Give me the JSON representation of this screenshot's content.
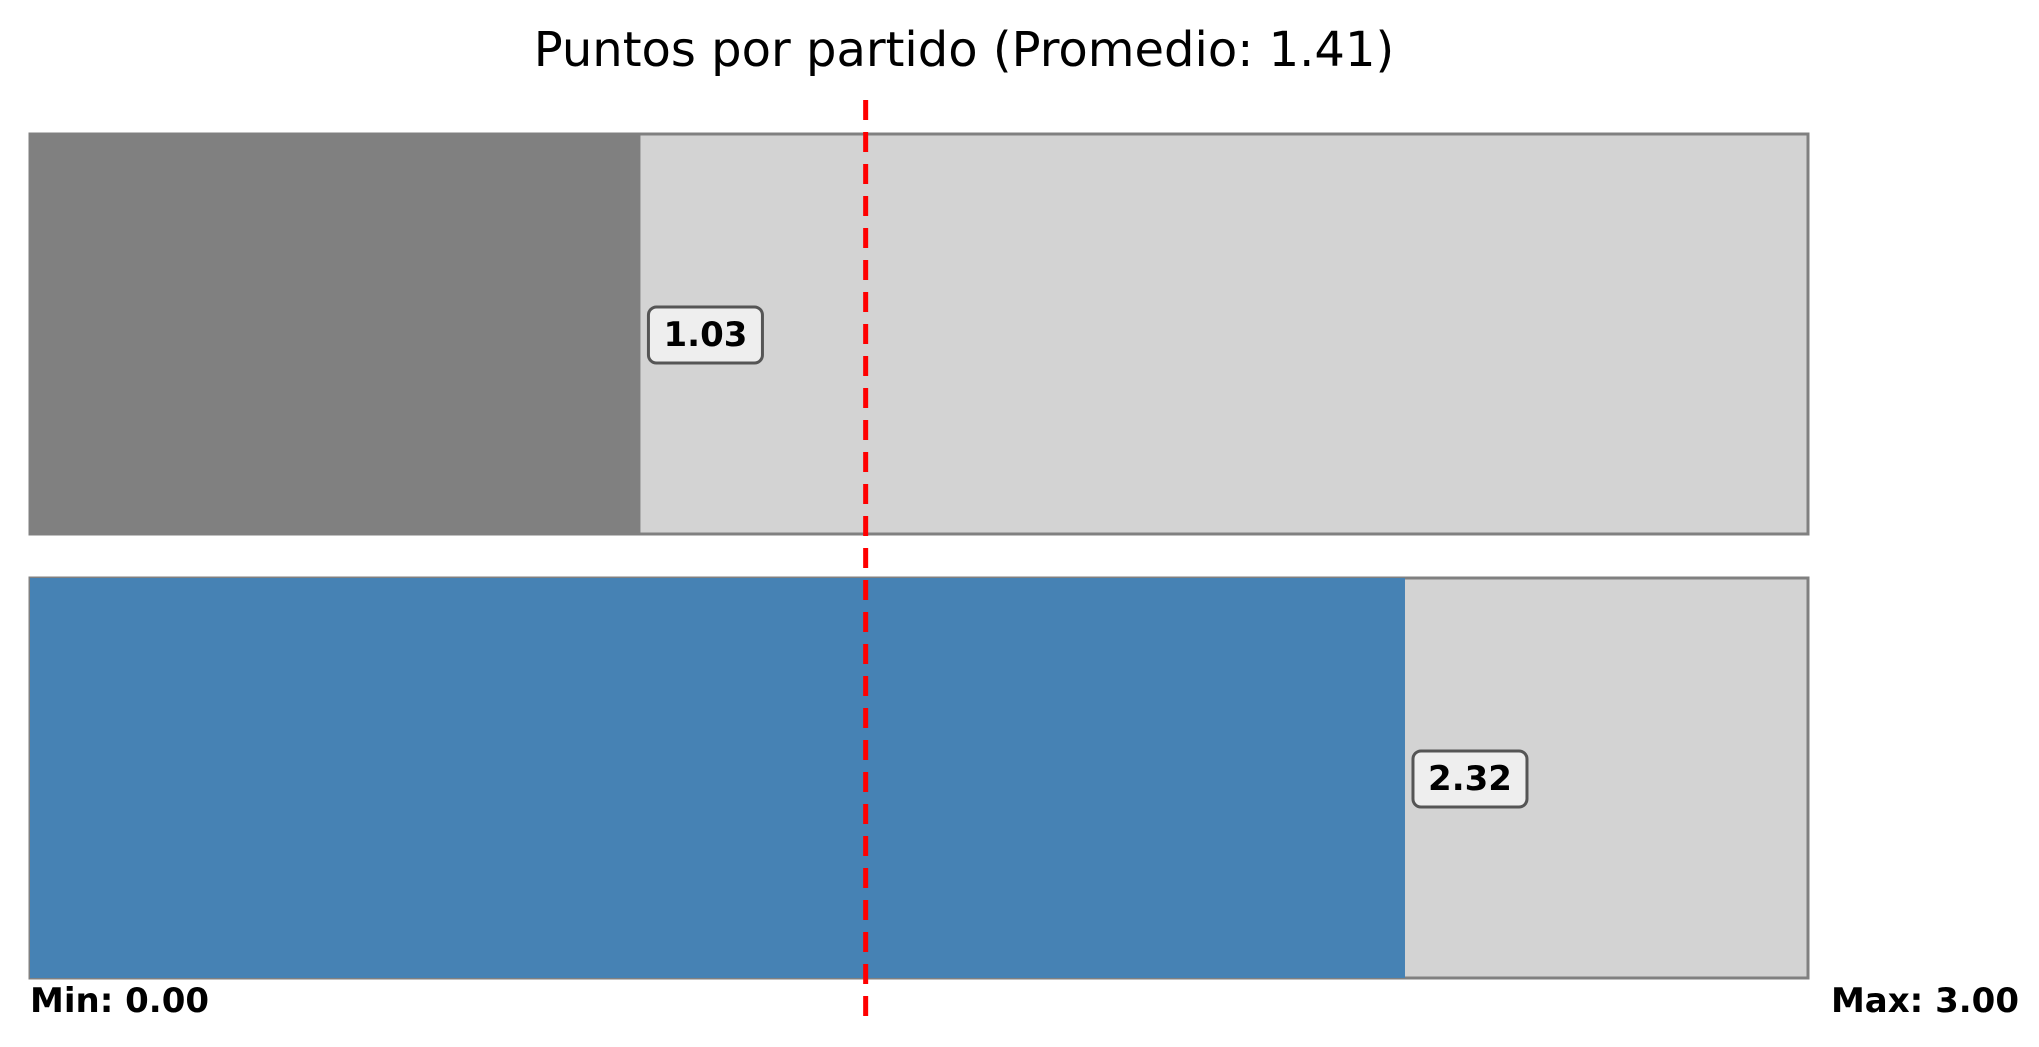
{
  "chart_data": {
    "type": "bar",
    "orientation": "horizontal",
    "title": "Puntos por partido (Promedio: 1.41)",
    "xlim": [
      0,
      3
    ],
    "average": 1.41,
    "min_label": "Min: 0.00",
    "max_label": "Max: 3.00",
    "grid": false,
    "series": [
      {
        "values": [
          1.03,
          2.32
        ]
      }
    ],
    "bars": [
      {
        "value": 1.03,
        "label": "1.03",
        "color": "#808080"
      },
      {
        "value": 2.32,
        "label": "2.32",
        "color": "#4682b4"
      }
    ],
    "track_color": "#d3d3d3",
    "track_border_color": "#808080",
    "average_line_color": "#ff0000"
  }
}
